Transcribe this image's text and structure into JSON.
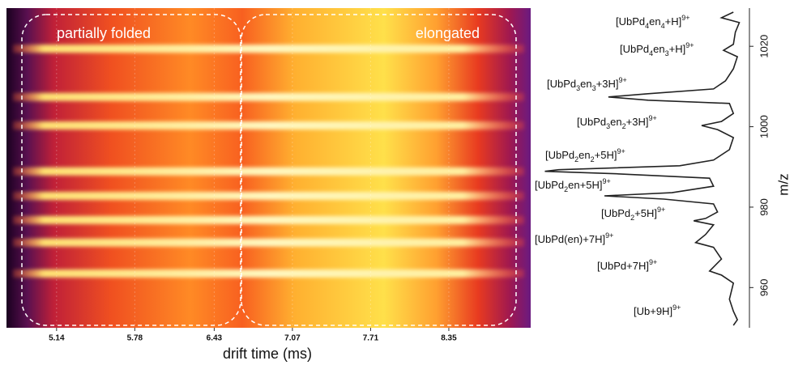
{
  "chart_data": [
    {
      "type": "heatmap",
      "x_label": "drift time (ms)",
      "xlim": [
        4.73,
        9.02
      ],
      "xticks": [
        5.14,
        5.78,
        6.43,
        7.07,
        7.71,
        8.35
      ],
      "ylim": [
        950,
        1029.5
      ],
      "band_mz": [
        1019.4,
        1007.4,
        1000.3,
        988.9,
        982.8,
        976.8,
        971.2,
        963.5
      ],
      "annotations": [
        "partially folded",
        "elongated"
      ]
    },
    {
      "type": "line",
      "color": "#222222",
      "y_label": "m/z",
      "ylim": [
        950,
        1029.5
      ],
      "yticks": [
        960,
        980,
        1000,
        1020
      ],
      "xlim": [
        0,
        100
      ],
      "x": [
        1028.5,
        1027.1,
        1025.9,
        1023.5,
        1020.5,
        1019.0,
        1017.4,
        1014.4,
        1011.4,
        1009.4,
        1008.2,
        1007.4,
        1006.6,
        1005.8,
        1003.3,
        1001.3,
        1000.3,
        999.3,
        997.3,
        994.3,
        991.7,
        990.3,
        989.3,
        988.9,
        988.3,
        987.2,
        985.2,
        983.6,
        982.8,
        982.0,
        980.8,
        978.8,
        977.2,
        976.6,
        975.6,
        973.2,
        971.2,
        970.0,
        967.1,
        964.1,
        963.1,
        961.1,
        957.1,
        954.1,
        952.0,
        950.6
      ],
      "values": [
        4,
        10,
        1,
        3,
        4,
        9,
        2,
        4,
        8,
        14,
        47,
        67,
        47,
        6,
        4,
        10,
        20,
        12,
        4,
        6,
        14,
        31,
        92,
        99,
        63,
        16,
        14,
        35,
        69,
        39,
        14,
        12,
        18,
        24,
        14,
        18,
        23,
        14,
        10,
        16,
        10,
        4,
        6,
        4,
        2,
        4
      ],
      "peak_labels": [
        [
          {
            "text": "[UbPd"
          },
          {
            "text": "4",
            "style": "sub"
          },
          {
            "text": "en"
          },
          {
            "text": "4",
            "style": "sub"
          },
          {
            "text": "+H]"
          },
          {
            "text": "9+",
            "style": "sup"
          }
        ],
        [
          {
            "text": "[UbPd"
          },
          {
            "text": "4",
            "style": "sub"
          },
          {
            "text": "en"
          },
          {
            "text": "3",
            "style": "sub"
          },
          {
            "text": "+H]"
          },
          {
            "text": "9+",
            "style": "sup"
          }
        ],
        [
          {
            "text": "[UbPd"
          },
          {
            "text": "3",
            "style": "sub"
          },
          {
            "text": "en"
          },
          {
            "text": "3",
            "style": "sub"
          },
          {
            "text": "+3H]"
          },
          {
            "text": "9+",
            "style": "sup"
          }
        ],
        [
          {
            "text": "[UbPd"
          },
          {
            "text": "3",
            "style": "sub"
          },
          {
            "text": "en"
          },
          {
            "text": "2",
            "style": "sub"
          },
          {
            "text": "+3H]"
          },
          {
            "text": "9+",
            "style": "sup"
          }
        ],
        [
          {
            "text": "[UbPd"
          },
          {
            "text": "2",
            "style": "sub"
          },
          {
            "text": "en"
          },
          {
            "text": "2",
            "style": "sub"
          },
          {
            "text": "+5H]"
          },
          {
            "text": "9+",
            "style": "sup"
          }
        ],
        [
          {
            "text": "[UbPd"
          },
          {
            "text": "2",
            "style": "sub"
          },
          {
            "text": "en+5H]"
          },
          {
            "text": "9+",
            "style": "sup"
          }
        ],
        [
          {
            "text": "[UbPd"
          },
          {
            "text": "2",
            "style": "sub"
          },
          {
            "text": "+5H]"
          },
          {
            "text": "9+",
            "style": "sup"
          }
        ],
        [
          {
            "text": "[UbPd(en)+7H]"
          },
          {
            "text": "9+",
            "style": "sup"
          }
        ],
        [
          {
            "text": "[UbPd+7H]"
          },
          {
            "text": "9+",
            "style": "sup"
          }
        ],
        [
          {
            "text": "[Ub+9H]"
          },
          {
            "text": "9+",
            "style": "sup"
          }
        ]
      ]
    }
  ]
}
